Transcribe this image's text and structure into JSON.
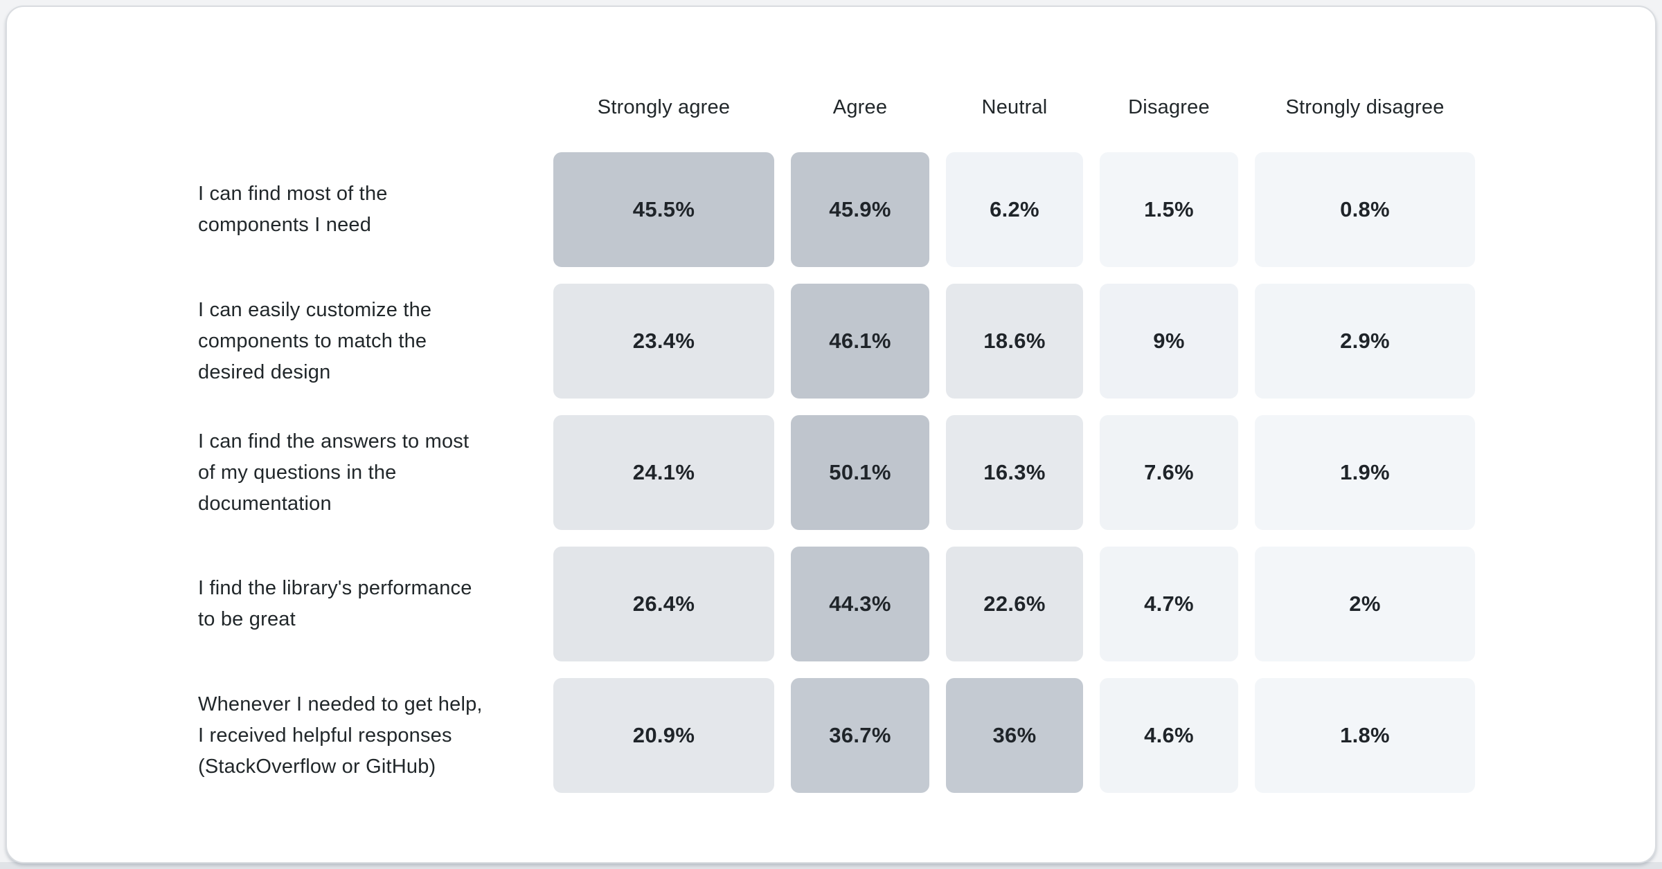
{
  "chart_data": {
    "type": "heatmap",
    "title": "",
    "columns": [
      "Strongly agree",
      "Agree",
      "Neutral",
      "Disagree",
      "Strongly disagree"
    ],
    "rows": [
      {
        "label": "I can find most of the components I need",
        "label_lines": [
          "I can find most of the",
          "components I need"
        ],
        "values": [
          45.5,
          45.9,
          6.2,
          1.5,
          0.8
        ],
        "display": [
          "45.5%",
          "45.9%",
          "6.2%",
          "1.5%",
          "0.8%"
        ]
      },
      {
        "label": "I can easily customize the components to match the desired design",
        "label_lines": [
          "I can easily customize the",
          "components to match the",
          "desired design"
        ],
        "values": [
          23.4,
          46.1,
          18.6,
          9,
          2.9
        ],
        "display": [
          "23.4%",
          "46.1%",
          "18.6%",
          "9%",
          "2.9%"
        ]
      },
      {
        "label": "I can find the answers to most of my questions in the documentation",
        "label_lines": [
          "I can find the answers to most",
          "of my questions in the",
          "documentation"
        ],
        "values": [
          24.1,
          50.1,
          16.3,
          7.6,
          1.9
        ],
        "display": [
          "24.1%",
          "50.1%",
          "16.3%",
          "7.6%",
          "1.9%"
        ]
      },
      {
        "label": "I find the library's performance to be great",
        "label_lines": [
          "I find the library's performance",
          "to be great"
        ],
        "values": [
          26.4,
          44.3,
          22.6,
          4.7,
          2
        ],
        "display": [
          "26.4%",
          "44.3%",
          "22.6%",
          "4.7%",
          "2%"
        ]
      },
      {
        "label": "Whenever I needed to get help, I received helpful responses (StackOverflow or GitHub)",
        "label_lines": [
          "Whenever I needed to get help,",
          "I received helpful responses",
          "(StackOverflow or GitHub)"
        ],
        "values": [
          20.9,
          36.7,
          36,
          4.6,
          1.8
        ],
        "display": [
          "20.9%",
          "36.7%",
          "36%",
          "4.6%",
          "1.8%"
        ]
      }
    ],
    "layout": {
      "legend": "none",
      "grid": "off",
      "value_range": [
        0,
        50.1
      ]
    },
    "colors": {
      "scale_stops": [
        [
          0,
          "#f4f7fa"
        ],
        [
          3,
          "#f2f5f8"
        ],
        [
          9,
          "#eff2f6"
        ],
        [
          16,
          "#e6e9ed"
        ],
        [
          26.4,
          "#e2e5e9"
        ],
        [
          36,
          "#c4cad2"
        ],
        [
          50.1,
          "#bfc5cd"
        ]
      ],
      "value_text": "#1f2429",
      "label_text": "#21272a",
      "header_text": "#21272a",
      "card_background": "#ffffff",
      "card_border": "#d9dce0",
      "bottom_strip": "#e0e3e7"
    }
  }
}
